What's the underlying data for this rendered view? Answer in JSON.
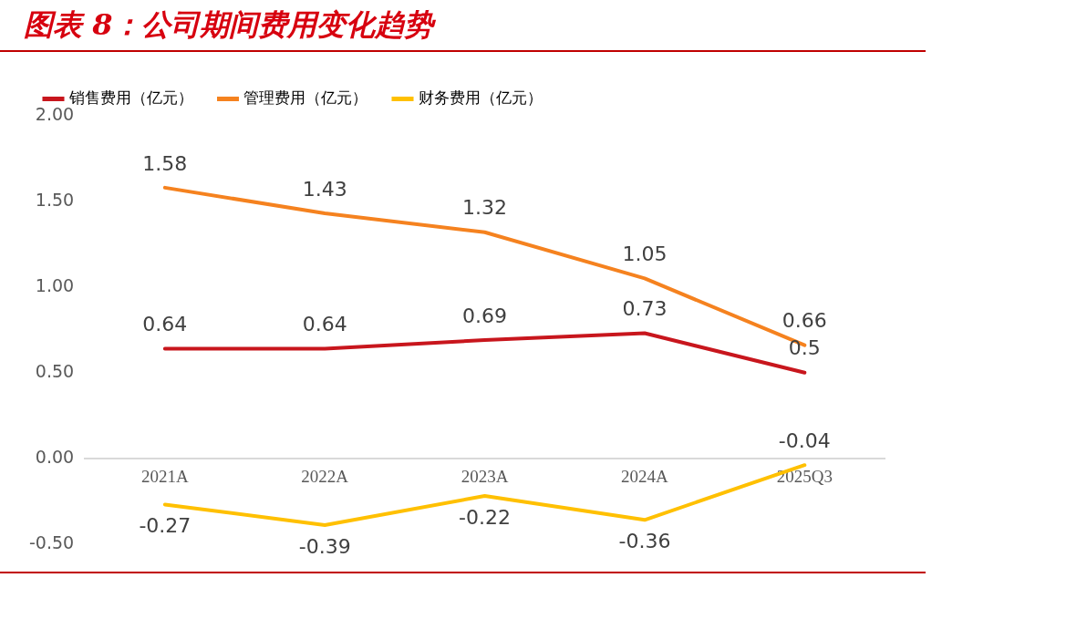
{
  "chart_data": {
    "type": "line",
    "title": "图表 8：公司期间费用变化趋势",
    "categories": [
      "2021A",
      "2022A",
      "2023A",
      "2024A",
      "2025Q3"
    ],
    "series": [
      {
        "name": "销售费用（亿元）",
        "color": "#c8161d",
        "values": [
          0.64,
          0.64,
          0.69,
          0.73,
          0.5
        ]
      },
      {
        "name": "管理费用（亿元）",
        "color": "#f5821f",
        "values": [
          1.58,
          1.43,
          1.32,
          1.05,
          0.66
        ]
      },
      {
        "name": "财务费用（亿元）",
        "color": "#ffc000",
        "values": [
          -0.27,
          -0.39,
          -0.22,
          -0.36,
          -0.04
        ]
      }
    ],
    "ylim": [
      -0.5,
      2.0
    ],
    "yticks": [
      {
        "value": -0.5,
        "label": "-0.50"
      },
      {
        "value": 0,
        "label": "0.00"
      },
      {
        "value": 0.5,
        "label": "0.50"
      },
      {
        "value": 1.0,
        "label": "1.00"
      },
      {
        "value": 1.5,
        "label": "1.50"
      },
      {
        "value": 2.0,
        "label": "2.00"
      }
    ],
    "grid": false,
    "legend": "top",
    "marker": "none",
    "line_style": "solid",
    "data_labels": true
  }
}
